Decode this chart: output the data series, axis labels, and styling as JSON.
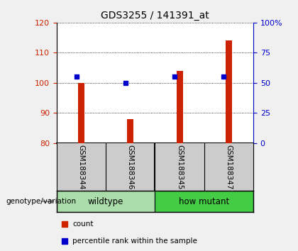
{
  "title": "GDS3255 / 141391_at",
  "samples": [
    "GSM188344",
    "GSM188346",
    "GSM188345",
    "GSM188347"
  ],
  "bar_values": [
    100.0,
    88.0,
    104.0,
    114.0
  ],
  "percentile_values": [
    55.0,
    50.0,
    55.0,
    55.0
  ],
  "bar_bottom": 80,
  "ylim_left": [
    80,
    120
  ],
  "ylim_right": [
    0,
    100
  ],
  "yticks_left": [
    80,
    90,
    100,
    110,
    120
  ],
  "yticks_right": [
    0,
    25,
    50,
    75,
    100
  ],
  "ytick_labels_right": [
    "0",
    "25",
    "50",
    "75",
    "100%"
  ],
  "bar_color": "#cc2200",
  "percentile_color": "#0000cc",
  "groups": [
    {
      "label": "wildtype",
      "indices": [
        0,
        1
      ],
      "color": "#aaddaa"
    },
    {
      "label": "how mutant",
      "indices": [
        2,
        3
      ],
      "color": "#44cc44"
    }
  ],
  "group_label_prefix": "genotype/variation",
  "legend_items": [
    {
      "label": "count",
      "color": "#cc2200"
    },
    {
      "label": "percentile rank within the sample",
      "color": "#0000cc"
    }
  ],
  "title_fontsize": 10,
  "tick_fontsize": 8,
  "sample_label_fontsize": 7.5,
  "plot_bg_color": "#ffffff",
  "sample_area_color": "#cccccc",
  "fig_bg_color": "#f0f0f0"
}
